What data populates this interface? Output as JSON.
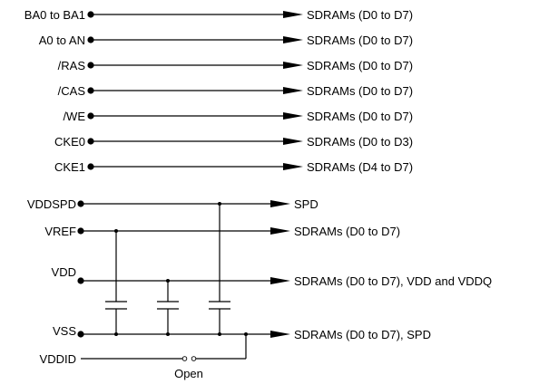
{
  "signals": [
    {
      "name": "BA0 to BA1",
      "dest": "SDRAMs (D0 to D7)"
    },
    {
      "name": "A0 to AN",
      "dest": "SDRAMs (D0 to D7)"
    },
    {
      "name": "/RAS",
      "dest": "SDRAMs (D0 to D7)"
    },
    {
      "name": "/CAS",
      "dest": "SDRAMs (D0 to D7)"
    },
    {
      "name": "/WE",
      "dest": "SDRAMs (D0 to D7)"
    },
    {
      "name": "CKE0",
      "dest": "SDRAMs (D0 to D3)"
    },
    {
      "name": "CKE1",
      "dest": "SDRAMs (D4 to D7)"
    }
  ],
  "power": {
    "vddspd": {
      "name": "VDDSPD",
      "dest": "SPD"
    },
    "vref": {
      "name": "VREF",
      "dest": "SDRAMs (D0 to D7)"
    },
    "vdd": {
      "name": "VDD",
      "dest": "SDRAMs (D0 to D7), VDD and VDDQ"
    },
    "vss": {
      "name": "VSS",
      "dest": "SDRAMs (D0 to D7), SPD"
    },
    "vddid": {
      "name": "VDDID"
    },
    "open_label": "Open"
  }
}
